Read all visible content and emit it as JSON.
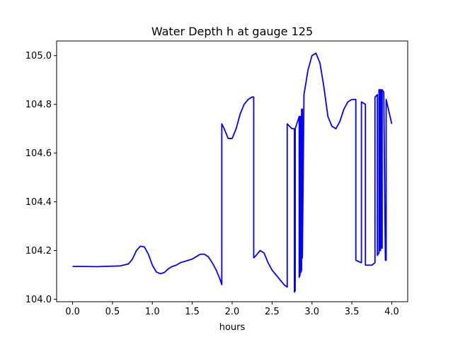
{
  "chart_data": {
    "type": "line",
    "title": "Water Depth h at gauge 125",
    "xlabel": "hours",
    "ylabel": "",
    "xlim": [
      -0.2,
      4.2
    ],
    "ylim": [
      103.99,
      105.06
    ],
    "grid": false,
    "line_color": "#0000ff",
    "x_ticks": [
      {
        "value": 0.0,
        "label": "0.0"
      },
      {
        "value": 0.5,
        "label": "0.5"
      },
      {
        "value": 1.0,
        "label": "1.0"
      },
      {
        "value": 1.5,
        "label": "1.5"
      },
      {
        "value": 2.0,
        "label": "2.0"
      },
      {
        "value": 2.5,
        "label": "2.5"
      },
      {
        "value": 3.0,
        "label": "3.0"
      },
      {
        "value": 3.5,
        "label": "3.5"
      },
      {
        "value": 4.0,
        "label": "4.0"
      }
    ],
    "y_ticks": [
      {
        "value": 104.0,
        "label": "104.0"
      },
      {
        "value": 104.2,
        "label": "104.2"
      },
      {
        "value": 104.4,
        "label": "104.4"
      },
      {
        "value": 104.6,
        "label": "104.6"
      },
      {
        "value": 104.8,
        "label": "104.8"
      },
      {
        "value": 105.0,
        "label": "105.0"
      }
    ],
    "series": [
      {
        "name": "",
        "x": [
          0.0,
          0.3,
          0.6,
          0.7,
          0.75,
          0.8,
          0.85,
          0.9,
          0.95,
          1.0,
          1.05,
          1.1,
          1.15,
          1.2,
          1.25,
          1.3,
          1.35,
          1.4,
          1.45,
          1.5,
          1.55,
          1.6,
          1.65,
          1.7,
          1.75,
          1.8,
          1.85,
          1.87,
          1.87,
          1.9,
          1.95,
          2.0,
          2.05,
          2.1,
          2.15,
          2.2,
          2.25,
          2.27,
          2.27,
          2.3,
          2.35,
          2.4,
          2.45,
          2.5,
          2.55,
          2.6,
          2.65,
          2.69,
          2.69,
          2.72,
          2.75,
          2.78,
          2.78,
          2.79,
          2.79,
          2.81,
          2.83,
          2.84,
          2.84,
          2.85,
          2.85,
          2.86,
          2.86,
          2.87,
          2.87,
          2.88,
          2.88,
          2.9,
          2.95,
          3.0,
          3.05,
          3.1,
          3.15,
          3.2,
          3.25,
          3.3,
          3.35,
          3.4,
          3.45,
          3.5,
          3.53,
          3.55,
          3.55,
          3.62,
          3.62,
          3.67,
          3.67,
          3.7,
          3.75,
          3.79,
          3.79,
          3.82,
          3.82,
          3.84,
          3.84,
          3.85,
          3.85,
          3.86,
          3.86,
          3.87,
          3.87,
          3.88,
          3.88,
          3.9,
          3.92,
          3.93,
          3.93,
          4.0
        ],
        "y": [
          104.135,
          104.134,
          104.137,
          104.145,
          104.165,
          104.2,
          104.218,
          104.215,
          104.185,
          104.14,
          104.112,
          104.105,
          104.11,
          104.125,
          104.135,
          104.14,
          104.15,
          104.155,
          104.16,
          104.165,
          104.175,
          104.185,
          104.185,
          104.175,
          104.15,
          104.12,
          104.08,
          104.06,
          104.72,
          104.7,
          104.66,
          104.66,
          104.7,
          104.76,
          104.8,
          104.82,
          104.83,
          104.83,
          104.17,
          104.18,
          104.2,
          104.19,
          104.15,
          104.12,
          104.1,
          104.08,
          104.06,
          104.05,
          104.72,
          104.71,
          104.7,
          104.7,
          104.03,
          104.035,
          104.7,
          104.72,
          104.74,
          104.75,
          104.09,
          104.1,
          104.75,
          104.75,
          104.11,
          104.12,
          104.78,
          104.78,
          104.17,
          104.84,
          104.94,
          105.0,
          105.01,
          104.97,
          104.87,
          104.75,
          104.71,
          104.7,
          104.73,
          104.78,
          104.81,
          104.82,
          104.82,
          104.82,
          104.16,
          104.15,
          104.81,
          104.8,
          104.14,
          104.14,
          104.14,
          104.15,
          104.83,
          104.84,
          104.18,
          104.19,
          104.86,
          104.86,
          104.2,
          104.2,
          104.86,
          104.86,
          104.21,
          104.21,
          104.86,
          104.85,
          104.16,
          104.16,
          104.82,
          104.72
        ]
      }
    ]
  }
}
